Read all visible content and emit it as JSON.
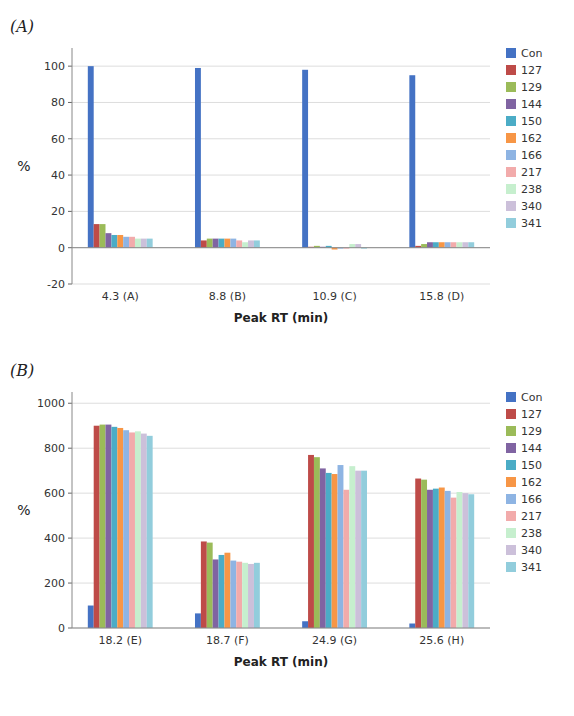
{
  "chart_data": [
    {
      "type": "bar",
      "title": "(A)",
      "xlabel": "Peak RT (min)",
      "ylabel": "%",
      "categories": [
        "4.3 (A)",
        "8.8 (B)",
        "10.9 (C)",
        "15.8 (D)"
      ],
      "series": [
        {
          "name": "Con",
          "color": "#4472C4",
          "values": [
            100,
            99,
            98,
            95
          ]
        },
        {
          "name": "127",
          "color": "#BE4B48",
          "values": [
            13,
            4,
            0.5,
            1
          ]
        },
        {
          "name": "129",
          "color": "#9BBB59",
          "values": [
            13,
            5,
            1,
            2
          ]
        },
        {
          "name": "144",
          "color": "#8064A2",
          "values": [
            8,
            5,
            0.5,
            3
          ]
        },
        {
          "name": "150",
          "color": "#4BACC6",
          "values": [
            7,
            5,
            1,
            3
          ]
        },
        {
          "name": "162",
          "color": "#F79646",
          "values": [
            7,
            5,
            -1,
            3
          ]
        },
        {
          "name": "166",
          "color": "#8EB4E3",
          "values": [
            6,
            5,
            -0.5,
            3
          ]
        },
        {
          "name": "217",
          "color": "#F2ABAB",
          "values": [
            6,
            4,
            -0.5,
            3
          ]
        },
        {
          "name": "238",
          "color": "#C6EFCE",
          "values": [
            5,
            3,
            2,
            3
          ]
        },
        {
          "name": "340",
          "color": "#CCC0DA",
          "values": [
            5,
            4,
            2,
            3
          ]
        },
        {
          "name": "341",
          "color": "#92CDDC",
          "values": [
            5,
            4,
            -0.5,
            3
          ]
        }
      ],
      "ylim": [
        -20,
        110
      ],
      "yticks": [
        -20,
        0,
        20,
        40,
        60,
        80,
        100
      ],
      "grid": true,
      "legend": "right"
    },
    {
      "type": "bar",
      "title": "(B)",
      "xlabel": "Peak RT (min)",
      "ylabel": "%",
      "categories": [
        "18.2 (E)",
        "18.7 (F)",
        "24.9 (G)",
        "25.6 (H)"
      ],
      "series": [
        {
          "name": "Con",
          "color": "#4472C4",
          "values": [
            100,
            65,
            30,
            20
          ]
        },
        {
          "name": "127",
          "color": "#BE4B48",
          "values": [
            900,
            385,
            770,
            665
          ]
        },
        {
          "name": "129",
          "color": "#9BBB59",
          "values": [
            905,
            380,
            760,
            660
          ]
        },
        {
          "name": "144",
          "color": "#8064A2",
          "values": [
            905,
            305,
            710,
            615
          ]
        },
        {
          "name": "150",
          "color": "#4BACC6",
          "values": [
            895,
            325,
            690,
            620
          ]
        },
        {
          "name": "162",
          "color": "#F79646",
          "values": [
            890,
            335,
            685,
            625
          ]
        },
        {
          "name": "166",
          "color": "#8EB4E3",
          "values": [
            880,
            300,
            725,
            610
          ]
        },
        {
          "name": "217",
          "color": "#F2ABAB",
          "values": [
            870,
            295,
            615,
            580
          ]
        },
        {
          "name": "238",
          "color": "#C6EFCE",
          "values": [
            875,
            290,
            720,
            605
          ]
        },
        {
          "name": "340",
          "color": "#CCC0DA",
          "values": [
            865,
            285,
            700,
            600
          ]
        },
        {
          "name": "341",
          "color": "#92CDDC",
          "values": [
            855,
            290,
            700,
            595
          ]
        }
      ],
      "ylim": [
        0,
        1050
      ],
      "yticks": [
        0,
        200,
        400,
        600,
        800,
        1000
      ],
      "grid": true,
      "legend": "right"
    }
  ]
}
